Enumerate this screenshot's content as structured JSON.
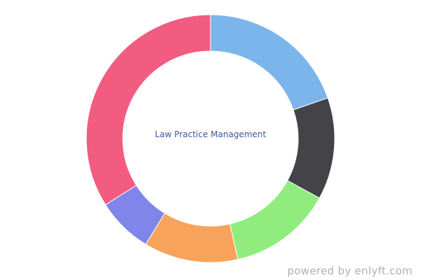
{
  "chart_data": {
    "type": "pie",
    "variant": "donut",
    "title": "Law Practice Management",
    "start_angle_deg": 0,
    "direction": "clockwise",
    "slices": [
      {
        "value": 19.7,
        "color": "#7cb5ec"
      },
      {
        "value": 13.3,
        "color": "#434348"
      },
      {
        "value": 13.5,
        "color": "#90ed7d"
      },
      {
        "value": 12.3,
        "color": "#f7a35c"
      },
      {
        "value": 7.3,
        "color": "#8085e9"
      },
      {
        "value": 34.0,
        "color": "#f15c80"
      }
    ],
    "legend": "none",
    "data_labels": false
  },
  "credit": "powered by enlyft.com"
}
